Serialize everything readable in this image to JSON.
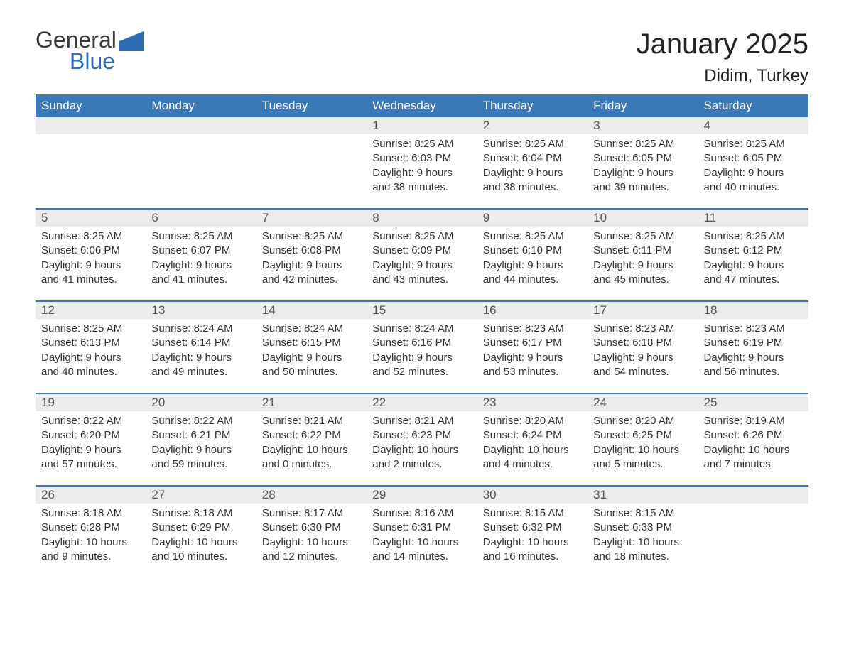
{
  "logo": {
    "word1": "General",
    "word2": "Blue",
    "mark_color": "#2f6db2"
  },
  "title": "January 2025",
  "location": "Didim, Turkey",
  "colors": {
    "header_bg": "#3b78b8",
    "header_text": "#ffffff",
    "daynum_bg": "#ececec",
    "text": "#333333",
    "week_border": "#3b78b8"
  },
  "typography": {
    "title_fontsize": 40,
    "location_fontsize": 24,
    "weekday_fontsize": 17,
    "daynum_fontsize": 17,
    "info_fontsize": 15
  },
  "weekdays": [
    "Sunday",
    "Monday",
    "Tuesday",
    "Wednesday",
    "Thursday",
    "Friday",
    "Saturday"
  ],
  "weeks": [
    [
      {
        "day": "",
        "sunrise": "",
        "sunset": "",
        "daylight": ""
      },
      {
        "day": "",
        "sunrise": "",
        "sunset": "",
        "daylight": ""
      },
      {
        "day": "",
        "sunrise": "",
        "sunset": "",
        "daylight": ""
      },
      {
        "day": "1",
        "sunrise": "Sunrise: 8:25 AM",
        "sunset": "Sunset: 6:03 PM",
        "daylight": "Daylight: 9 hours and 38 minutes."
      },
      {
        "day": "2",
        "sunrise": "Sunrise: 8:25 AM",
        "sunset": "Sunset: 6:04 PM",
        "daylight": "Daylight: 9 hours and 38 minutes."
      },
      {
        "day": "3",
        "sunrise": "Sunrise: 8:25 AM",
        "sunset": "Sunset: 6:05 PM",
        "daylight": "Daylight: 9 hours and 39 minutes."
      },
      {
        "day": "4",
        "sunrise": "Sunrise: 8:25 AM",
        "sunset": "Sunset: 6:05 PM",
        "daylight": "Daylight: 9 hours and 40 minutes."
      }
    ],
    [
      {
        "day": "5",
        "sunrise": "Sunrise: 8:25 AM",
        "sunset": "Sunset: 6:06 PM",
        "daylight": "Daylight: 9 hours and 41 minutes."
      },
      {
        "day": "6",
        "sunrise": "Sunrise: 8:25 AM",
        "sunset": "Sunset: 6:07 PM",
        "daylight": "Daylight: 9 hours and 41 minutes."
      },
      {
        "day": "7",
        "sunrise": "Sunrise: 8:25 AM",
        "sunset": "Sunset: 6:08 PM",
        "daylight": "Daylight: 9 hours and 42 minutes."
      },
      {
        "day": "8",
        "sunrise": "Sunrise: 8:25 AM",
        "sunset": "Sunset: 6:09 PM",
        "daylight": "Daylight: 9 hours and 43 minutes."
      },
      {
        "day": "9",
        "sunrise": "Sunrise: 8:25 AM",
        "sunset": "Sunset: 6:10 PM",
        "daylight": "Daylight: 9 hours and 44 minutes."
      },
      {
        "day": "10",
        "sunrise": "Sunrise: 8:25 AM",
        "sunset": "Sunset: 6:11 PM",
        "daylight": "Daylight: 9 hours and 45 minutes."
      },
      {
        "day": "11",
        "sunrise": "Sunrise: 8:25 AM",
        "sunset": "Sunset: 6:12 PM",
        "daylight": "Daylight: 9 hours and 47 minutes."
      }
    ],
    [
      {
        "day": "12",
        "sunrise": "Sunrise: 8:25 AM",
        "sunset": "Sunset: 6:13 PM",
        "daylight": "Daylight: 9 hours and 48 minutes."
      },
      {
        "day": "13",
        "sunrise": "Sunrise: 8:24 AM",
        "sunset": "Sunset: 6:14 PM",
        "daylight": "Daylight: 9 hours and 49 minutes."
      },
      {
        "day": "14",
        "sunrise": "Sunrise: 8:24 AM",
        "sunset": "Sunset: 6:15 PM",
        "daylight": "Daylight: 9 hours and 50 minutes."
      },
      {
        "day": "15",
        "sunrise": "Sunrise: 8:24 AM",
        "sunset": "Sunset: 6:16 PM",
        "daylight": "Daylight: 9 hours and 52 minutes."
      },
      {
        "day": "16",
        "sunrise": "Sunrise: 8:23 AM",
        "sunset": "Sunset: 6:17 PM",
        "daylight": "Daylight: 9 hours and 53 minutes."
      },
      {
        "day": "17",
        "sunrise": "Sunrise: 8:23 AM",
        "sunset": "Sunset: 6:18 PM",
        "daylight": "Daylight: 9 hours and 54 minutes."
      },
      {
        "day": "18",
        "sunrise": "Sunrise: 8:23 AM",
        "sunset": "Sunset: 6:19 PM",
        "daylight": "Daylight: 9 hours and 56 minutes."
      }
    ],
    [
      {
        "day": "19",
        "sunrise": "Sunrise: 8:22 AM",
        "sunset": "Sunset: 6:20 PM",
        "daylight": "Daylight: 9 hours and 57 minutes."
      },
      {
        "day": "20",
        "sunrise": "Sunrise: 8:22 AM",
        "sunset": "Sunset: 6:21 PM",
        "daylight": "Daylight: 9 hours and 59 minutes."
      },
      {
        "day": "21",
        "sunrise": "Sunrise: 8:21 AM",
        "sunset": "Sunset: 6:22 PM",
        "daylight": "Daylight: 10 hours and 0 minutes."
      },
      {
        "day": "22",
        "sunrise": "Sunrise: 8:21 AM",
        "sunset": "Sunset: 6:23 PM",
        "daylight": "Daylight: 10 hours and 2 minutes."
      },
      {
        "day": "23",
        "sunrise": "Sunrise: 8:20 AM",
        "sunset": "Sunset: 6:24 PM",
        "daylight": "Daylight: 10 hours and 4 minutes."
      },
      {
        "day": "24",
        "sunrise": "Sunrise: 8:20 AM",
        "sunset": "Sunset: 6:25 PM",
        "daylight": "Daylight: 10 hours and 5 minutes."
      },
      {
        "day": "25",
        "sunrise": "Sunrise: 8:19 AM",
        "sunset": "Sunset: 6:26 PM",
        "daylight": "Daylight: 10 hours and 7 minutes."
      }
    ],
    [
      {
        "day": "26",
        "sunrise": "Sunrise: 8:18 AM",
        "sunset": "Sunset: 6:28 PM",
        "daylight": "Daylight: 10 hours and 9 minutes."
      },
      {
        "day": "27",
        "sunrise": "Sunrise: 8:18 AM",
        "sunset": "Sunset: 6:29 PM",
        "daylight": "Daylight: 10 hours and 10 minutes."
      },
      {
        "day": "28",
        "sunrise": "Sunrise: 8:17 AM",
        "sunset": "Sunset: 6:30 PM",
        "daylight": "Daylight: 10 hours and 12 minutes."
      },
      {
        "day": "29",
        "sunrise": "Sunrise: 8:16 AM",
        "sunset": "Sunset: 6:31 PM",
        "daylight": "Daylight: 10 hours and 14 minutes."
      },
      {
        "day": "30",
        "sunrise": "Sunrise: 8:15 AM",
        "sunset": "Sunset: 6:32 PM",
        "daylight": "Daylight: 10 hours and 16 minutes."
      },
      {
        "day": "31",
        "sunrise": "Sunrise: 8:15 AM",
        "sunset": "Sunset: 6:33 PM",
        "daylight": "Daylight: 10 hours and 18 minutes."
      },
      {
        "day": "",
        "sunrise": "",
        "sunset": "",
        "daylight": ""
      }
    ]
  ]
}
